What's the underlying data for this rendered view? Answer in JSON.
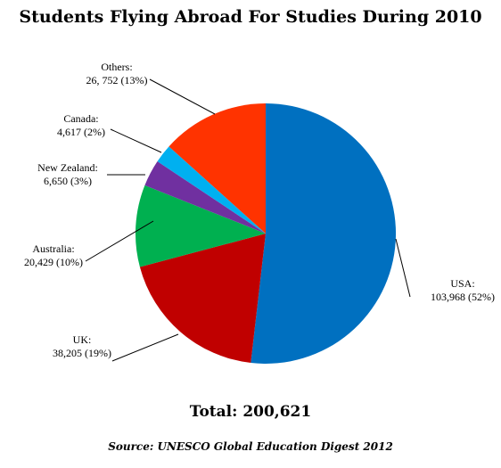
{
  "chart_data": {
    "type": "pie",
    "title": "Students Flying Abroad For Studies During 2010",
    "slices": [
      {
        "name": "USA",
        "value": 103968,
        "value_label": "103,968",
        "percent_label": "(52%)",
        "color": "#0070C0"
      },
      {
        "name": "UK",
        "value": 38205,
        "value_label": "38,205",
        "percent_label": "(19%)",
        "color": "#C00000"
      },
      {
        "name": "Australia",
        "value": 20429,
        "value_label": "20,429",
        "percent_label": "(10%)",
        "color": "#00B050"
      },
      {
        "name": "New Zealand",
        "value": 6650,
        "value_label": "6,650",
        "percent_label": "(3%)",
        "color": "#7030A0"
      },
      {
        "name": "Canada",
        "value": 4617,
        "value_label": "4,617",
        "percent_label": "(2%)",
        "color": "#00B0F0"
      },
      {
        "name": "Others",
        "value": 26752,
        "value_label": "26, 752",
        "percent_label": "(13%)",
        "color": "#FF3300"
      }
    ],
    "total_text": "Total: 200,621",
    "source_text": "Source: UNESCO Global Education Digest 2012",
    "legend": "none"
  }
}
